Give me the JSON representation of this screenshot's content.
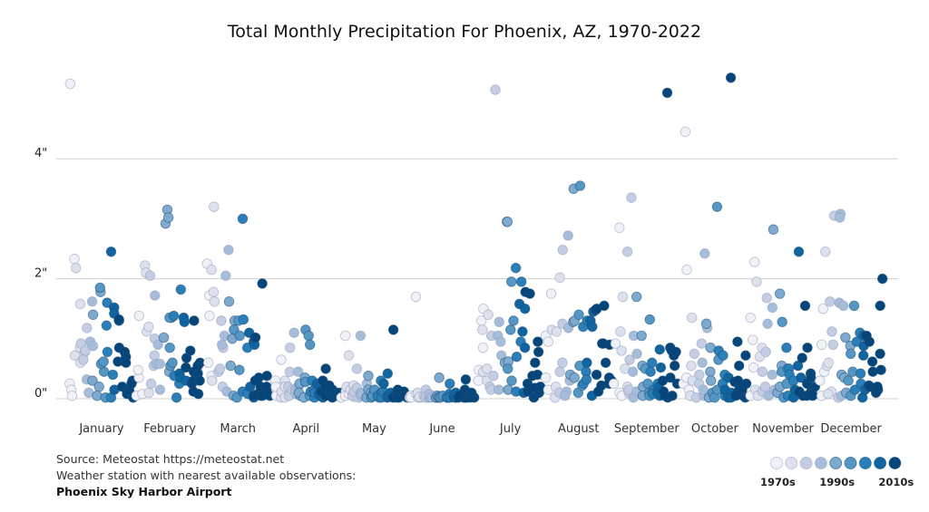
{
  "chart_data": {
    "type": "scatter",
    "title": "Total Monthly Precipitation For Phoenix, AZ, 1970-2022",
    "categories": [
      "January",
      "February",
      "March",
      "April",
      "May",
      "June",
      "July",
      "August",
      "September",
      "October",
      "November",
      "December"
    ],
    "years": [
      1970,
      2022
    ],
    "y_ticks": [
      {
        "value": 0,
        "label": "0\""
      },
      {
        "value": 2,
        "label": "2\""
      },
      {
        "value": 4,
        "label": "4\""
      }
    ],
    "ylim": [
      0,
      5.5
    ],
    "grid": true,
    "legend": {
      "placement": "bottom-right",
      "bins": [
        1970,
        1975,
        1980,
        1985,
        1990,
        1995,
        2000,
        2005,
        2010
      ],
      "colors": [
        "#f1f1f8",
        "#dde1ee",
        "#c4cde3",
        "#a6bdd9",
        "#7eaacf",
        "#5597c4",
        "#2a7fb8",
        "#10649f",
        "#05457a"
      ],
      "labels": [
        {
          "bin": 0,
          "text": "1970s"
        },
        {
          "bin": 4,
          "text": "1990s"
        },
        {
          "bin": 8,
          "text": "2010s"
        }
      ]
    },
    "values_by_month": [
      [
        0.25,
        0.15,
        5.25,
        0.05,
        2.33,
        2.18,
        0.72,
        0.6,
        0.85,
        1.58,
        0.92,
        0.78,
        0.8,
        0.65,
        1.18,
        0.32,
        0.95,
        0.1,
        1.62,
        0.88,
        0.3,
        1.4,
        0.2,
        1.78,
        0.05,
        1.85,
        0.45,
        0.58,
        0.62,
        0.02,
        0.78,
        1.22,
        1.6,
        0.4,
        0.02,
        2.45,
        1.52,
        1.42,
        0.15,
        1.3,
        0.62,
        0.85,
        1.32,
        0.78,
        0.2,
        0.08,
        0.7,
        0.6,
        0.15,
        0.12,
        0.3,
        0.02,
        0.25
      ],
      [
        0.05,
        0.35,
        0.48,
        1.38,
        0.08,
        2.22,
        2.1,
        0.1,
        1.12,
        1.2,
        2.05,
        0.25,
        0.72,
        0.55,
        1.0,
        1.72,
        0.58,
        0.15,
        0.9,
        0.58,
        1.02,
        2.92,
        3.15,
        3.02,
        0.45,
        0.85,
        0.55,
        1.35,
        1.35,
        0.6,
        1.38,
        0.38,
        0.02,
        0.25,
        1.82,
        0.42,
        1.28,
        0.35,
        1.35,
        0.3,
        0.68,
        0.52,
        0.25,
        0.8,
        0.45,
        0.3,
        1.3,
        0.12,
        0.08,
        0.6,
        0.42,
        0.55,
        0.3
      ],
      [
        2.25,
        0.6,
        1.72,
        0.38,
        1.38,
        3.2,
        2.15,
        0.3,
        1.78,
        1.62,
        0.45,
        1.3,
        0.2,
        0.5,
        0.85,
        0.9,
        1.05,
        0.12,
        2.05,
        2.48,
        1.62,
        0.55,
        1.3,
        1.0,
        0.05,
        1.15,
        1.3,
        0.02,
        1.05,
        0.48,
        3.0,
        1.32,
        0.12,
        0.08,
        0.85,
        0.2,
        1.1,
        0.95,
        0.02,
        0.9,
        0.05,
        1.02,
        0.3,
        0.05,
        0.08,
        0.35,
        0.2,
        0.05,
        1.92,
        0.2,
        0.38,
        0.1,
        0.05
      ],
      [
        0.15,
        0.3,
        0.05,
        0.2,
        0.65,
        0.02,
        0.12,
        0.3,
        0.2,
        0.02,
        0.05,
        0.45,
        0.2,
        0.85,
        0.15,
        1.1,
        0.08,
        0.15,
        0.22,
        0.45,
        0.05,
        0.25,
        0.1,
        0.35,
        0.02,
        1.15,
        0.28,
        1.05,
        0.9,
        0.05,
        0.12,
        0.15,
        0.02,
        0.3,
        0.1,
        0.25,
        0.05,
        0.2,
        0.08,
        0.02,
        0.12,
        0.3,
        0.05,
        0.5,
        0.18,
        0.05,
        0.1,
        0.22,
        0.02,
        0.15,
        0.05,
        0.08,
        0.1
      ],
      [
        0.02,
        0.12,
        0.05,
        1.05,
        0.08,
        0.2,
        0.72,
        0.15,
        0.03,
        0.22,
        0.05,
        0.12,
        0.5,
        0.18,
        0.02,
        0.1,
        0.05,
        1.05,
        0.08,
        0.25,
        0.02,
        0.15,
        0.05,
        0.38,
        0.1,
        0.02,
        0.08,
        0.05,
        0.15,
        0.02,
        0.3,
        0.05,
        0.1,
        0.02,
        0.12,
        0.25,
        0.42,
        0.05,
        0.02,
        0.1,
        1.15,
        0.05,
        0.02,
        0.08,
        0.15,
        0.02,
        0.05,
        0.1,
        0.02,
        0.08,
        0.12,
        0.02,
        0.05
      ],
      [
        0.02,
        0.05,
        0.02,
        0.08,
        1.7,
        0.02,
        0.05,
        0.1,
        0.02,
        0.03,
        0.05,
        0.02,
        0.15,
        0.02,
        0.05,
        0.02,
        0.03,
        0.08,
        0.02,
        0.05,
        0.02,
        0.02,
        0.05,
        0.35,
        0.02,
        0.03,
        0.02,
        0.05,
        0.02,
        0.02,
        0.08,
        0.02,
        0.05,
        0.02,
        0.25,
        0.02,
        0.03,
        0.05,
        0.02,
        0.1,
        0.02,
        0.05,
        0.02,
        0.02,
        0.15,
        0.32,
        0.02,
        0.05,
        0.02,
        0.08,
        0.02,
        0.1,
        0.02
      ],
      [
        0.48,
        0.3,
        1.3,
        0.85,
        1.5,
        1.15,
        0.45,
        0.3,
        1.4,
        0.5,
        1.05,
        0.2,
        0.15,
        0.38,
        5.15,
        1.05,
        0.95,
        0.72,
        0.15,
        1.28,
        0.6,
        2.95,
        2.95,
        0.15,
        0.62,
        1.95,
        0.5,
        1.15,
        1.3,
        0.3,
        0.12,
        2.18,
        0.7,
        1.95,
        0.95,
        1.58,
        0.1,
        1.5,
        1.12,
        0.85,
        1.78,
        0.12,
        0.25,
        1.75,
        0.38,
        0.02,
        0.18,
        0.78,
        0.6,
        0.95,
        0.4,
        0.1,
        0.2
      ],
      [
        0.35,
        1.05,
        0.95,
        0.15,
        1.75,
        1.15,
        0.2,
        0.02,
        1.12,
        2.02,
        0.45,
        0.1,
        2.48,
        0.6,
        1.25,
        0.12,
        0.05,
        2.72,
        1.18,
        0.3,
        1.28,
        0.4,
        3.5,
        0.35,
        1.3,
        1.4,
        0.55,
        0.1,
        0.22,
        3.55,
        1.2,
        0.45,
        0.25,
        0.32,
        1.3,
        0.6,
        1.3,
        1.45,
        1.2,
        0.05,
        1.48,
        0.4,
        0.12,
        1.5,
        0.92,
        0.22,
        1.55,
        0.6,
        0.92,
        0.35,
        0.9,
        0.3,
        0.25
      ],
      [
        0.25,
        0.92,
        2.85,
        0.1,
        0.05,
        1.12,
        0.8,
        0.5,
        1.7,
        0.2,
        2.45,
        0.1,
        0.15,
        3.35,
        0.65,
        0.45,
        1.05,
        0.02,
        0.75,
        0.12,
        1.7,
        0.2,
        0.55,
        1.05,
        0.05,
        0.25,
        0.5,
        0.1,
        1.32,
        0.05,
        0.15,
        0.45,
        0.6,
        0.08,
        0.25,
        0.82,
        0.05,
        0.1,
        0.2,
        0.52,
        0.3,
        0.02,
        0.12,
        0.05,
        5.1,
        0.85,
        0.8,
        0.35,
        0.05,
        0.55,
        0.72,
        0.25,
        0.78
      ],
      [
        0.25,
        4.45,
        0.35,
        0.15,
        2.15,
        0.05,
        0.55,
        0.3,
        0.05,
        1.35,
        0.75,
        0.02,
        0.25,
        0.4,
        0.92,
        0.05,
        2.42,
        0.6,
        0.15,
        1.18,
        1.25,
        0.45,
        0.02,
        0.85,
        0.3,
        0.1,
        3.2,
        0.65,
        0.02,
        0.15,
        0.8,
        0.25,
        0.05,
        0.4,
        0.72,
        0.15,
        0.02,
        0.35,
        0.1,
        0.02,
        5.35,
        0.28,
        0.05,
        0.95,
        0.12,
        0.55,
        0.2,
        0.3,
        0.05,
        0.72,
        0.15,
        0.02,
        0.25
      ],
      [
        1.35,
        0.05,
        0.98,
        0.52,
        2.28,
        0.15,
        1.95,
        0.05,
        0.7,
        0.85,
        0.45,
        0.12,
        1.68,
        0.2,
        0.78,
        1.25,
        0.05,
        1.52,
        0.4,
        0.15,
        2.82,
        0.1,
        1.75,
        0.55,
        0.2,
        0.45,
        0.02,
        1.28,
        0.5,
        0.25,
        0.85,
        0.5,
        0.05,
        0.4,
        0.3,
        0.15,
        0.02,
        0.55,
        2.45,
        0.35,
        0.12,
        0.68,
        0.05,
        1.55,
        0.25,
        0.85,
        0.05,
        0.42,
        0.12,
        0.08,
        0.2,
        0.35,
        0.05
      ],
      [
        0.3,
        1.5,
        0.45,
        0.05,
        0.9,
        0.55,
        2.45,
        0.6,
        0.12,
        0.08,
        1.62,
        3.05,
        1.12,
        0.9,
        0.02,
        1.6,
        3.08,
        3.02,
        0.05,
        1.55,
        0.4,
        0.1,
        0.35,
        1.02,
        0.88,
        0.05,
        0.3,
        0.75,
        1.55,
        0.45,
        0.15,
        0.95,
        0.42,
        1.1,
        0.25,
        1.05,
        0.02,
        0.72,
        0.88,
        0.15,
        1.05,
        0.22,
        0.95,
        0.62,
        0.2,
        0.45,
        0.15,
        0.1,
        0.2,
        0.75,
        2.0,
        1.55,
        0.48
      ]
    ]
  },
  "footer": {
    "source": "Source: Meteostat https://meteostat.net",
    "station_note": "Weather station with nearest available observations:",
    "station": "Phoenix Sky Harbor Airport"
  }
}
